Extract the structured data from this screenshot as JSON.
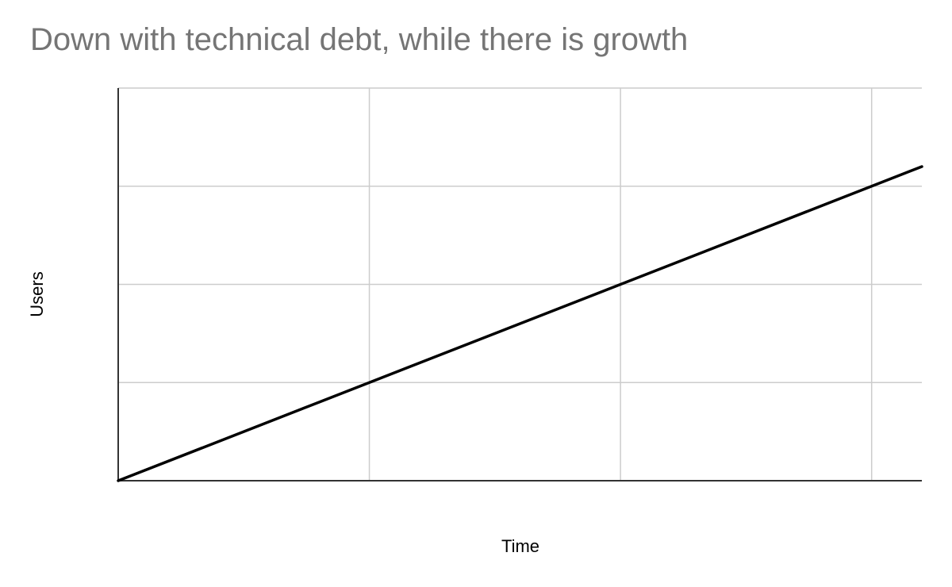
{
  "chart_data": {
    "type": "line",
    "title": "Down with technical debt, while there is growth",
    "xlabel": "Time",
    "ylabel": "Users",
    "x": [
      0,
      1,
      2,
      3,
      3.2
    ],
    "series": [
      {
        "values": [
          0,
          1,
          2,
          3,
          3.2
        ]
      }
    ],
    "xlim": [
      0,
      3.2
    ],
    "ylim": [
      0,
      4
    ],
    "grid": true,
    "colors": {
      "line": "#000000",
      "grid": "#cccccc",
      "axis": "#333333",
      "title": "#757575"
    }
  }
}
